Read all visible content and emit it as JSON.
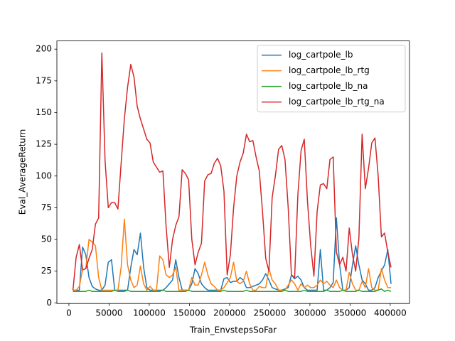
{
  "chart_data": {
    "type": "line",
    "x_label": "Train_EnvstepsSoFar",
    "y_label": "Eval_AverageReturn",
    "x": [
      5000,
      9000,
      13000,
      17000,
      21000,
      25000,
      29000,
      33000,
      37000,
      41000,
      45000,
      49000,
      53000,
      57000,
      61000,
      65000,
      69000,
      73000,
      77000,
      81000,
      85000,
      89000,
      93000,
      97000,
      101000,
      105000,
      109000,
      113000,
      117000,
      121000,
      125000,
      129000,
      133000,
      137000,
      141000,
      145000,
      149000,
      153000,
      157000,
      161000,
      165000,
      169000,
      173000,
      177000,
      181000,
      185000,
      189000,
      193000,
      197000,
      201000,
      205000,
      209000,
      213000,
      217000,
      221000,
      225000,
      229000,
      233000,
      237000,
      241000,
      245000,
      249000,
      253000,
      257000,
      261000,
      265000,
      269000,
      273000,
      277000,
      281000,
      285000,
      289000,
      293000,
      297000,
      301000,
      305000,
      309000,
      313000,
      317000,
      321000,
      325000,
      329000,
      333000,
      337000,
      341000,
      345000,
      349000,
      353000,
      357000,
      361000,
      365000,
      369000,
      373000,
      377000,
      381000,
      385000,
      389000,
      393000,
      397000,
      401000
    ],
    "series": [
      {
        "name": "log_cartpole_lb",
        "color": "#1f77b4",
        "values": [
          10,
          10,
          10,
          44,
          38,
          20,
          13,
          11,
          10,
          10,
          14,
          32,
          34,
          10,
          10,
          10,
          10,
          10,
          28,
          42,
          38,
          55,
          28,
          12,
          10,
          10,
          10,
          10,
          10,
          12,
          15,
          18,
          34,
          20,
          10,
          10,
          10,
          15,
          27,
          23,
          15,
          12,
          10,
          10,
          10,
          10,
          10,
          19,
          20,
          16,
          17,
          17,
          20,
          18,
          12,
          12,
          13,
          14,
          15,
          18,
          23,
          18,
          12,
          11,
          10,
          10,
          11,
          12,
          22,
          19,
          21,
          18,
          12,
          10,
          10,
          10,
          10,
          42,
          10,
          10,
          12,
          16,
          67,
          30,
          10,
          10,
          12,
          30,
          45,
          30,
          18,
          15,
          10,
          10,
          12,
          20,
          25,
          30,
          42,
          15
        ]
      },
      {
        "name": "log_cartpole_lb_rtg",
        "color": "#ff7f0e",
        "values": [
          10,
          10,
          13,
          26,
          27,
          50,
          48,
          45,
          20,
          10,
          10,
          10,
          10,
          10,
          10,
          28,
          66,
          30,
          18,
          12,
          14,
          29,
          15,
          10,
          13,
          10,
          10,
          37,
          34,
          22,
          20,
          22,
          28,
          10,
          10,
          10,
          10,
          20,
          14,
          14,
          22,
          32,
          22,
          15,
          13,
          10,
          10,
          12,
          16,
          20,
          32,
          17,
          15,
          17,
          25,
          15,
          10,
          10,
          13,
          12,
          12,
          27,
          18,
          15,
          10,
          10,
          10,
          14,
          18,
          15,
          10,
          15,
          12,
          14,
          12,
          12,
          14,
          18,
          15,
          17,
          14,
          12,
          18,
          12,
          10,
          10,
          24,
          15,
          10,
          10,
          17,
          12,
          27,
          12,
          10,
          10,
          27,
          18,
          12,
          12
        ]
      },
      {
        "name": "log_cartpole_lb_na",
        "color": "#2ca02c",
        "values": [
          9,
          9,
          9,
          9,
          9,
          10,
          9,
          9,
          9,
          9,
          9,
          9,
          9,
          10,
          9,
          9,
          9,
          10,
          9,
          9,
          9,
          9,
          9,
          9,
          9,
          9,
          9,
          9,
          10,
          9,
          9,
          9,
          9,
          9,
          9,
          9,
          10,
          9,
          9,
          9,
          9,
          9,
          9,
          9,
          9,
          9,
          9,
          10,
          9,
          9,
          9,
          9,
          9,
          9,
          10,
          9,
          9,
          9,
          9,
          9,
          9,
          9,
          9,
          9,
          9,
          9,
          10,
          9,
          9,
          9,
          9,
          9,
          10,
          9,
          9,
          9,
          9,
          9,
          9,
          10,
          9,
          9,
          9,
          9,
          10,
          9,
          9,
          9,
          9,
          10,
          9,
          9,
          9,
          9,
          9,
          10,
          11,
          9,
          10,
          9
        ]
      },
      {
        "name": "log_cartpole_lb_rtg_na",
        "color": "#d62728",
        "values": [
          10,
          36,
          46,
          26,
          27,
          35,
          42,
          62,
          67,
          197,
          112,
          75,
          79,
          79,
          74,
          110,
          145,
          170,
          188,
          178,
          155,
          145,
          137,
          129,
          126,
          111,
          107,
          103,
          104,
          60,
          28,
          50,
          61,
          68,
          105,
          102,
          97,
          50,
          30,
          40,
          47,
          96,
          101,
          102,
          110,
          114,
          108,
          88,
          22,
          38,
          75,
          100,
          111,
          118,
          133,
          127,
          128,
          115,
          104,
          72,
          35,
          25,
          83,
          100,
          121,
          124,
          113,
          75,
          22,
          20,
          85,
          120,
          129,
          80,
          45,
          21,
          72,
          93,
          94,
          90,
          113,
          115,
          40,
          30,
          36,
          25,
          59,
          38,
          25,
          51,
          133,
          90,
          106,
          126,
          130,
          100,
          52,
          55,
          40,
          28
        ]
      }
    ],
    "xlim": [
      -15000,
      424000
    ],
    "xticks": [
      0,
      50000,
      100000,
      150000,
      200000,
      250000,
      300000,
      350000,
      400000
    ],
    "ylim": [
      -0.5,
      206.5
    ],
    "yticks": [
      0,
      25,
      50,
      75,
      100,
      125,
      150,
      175,
      200
    ],
    "grid": false,
    "legend": "upper right"
  }
}
